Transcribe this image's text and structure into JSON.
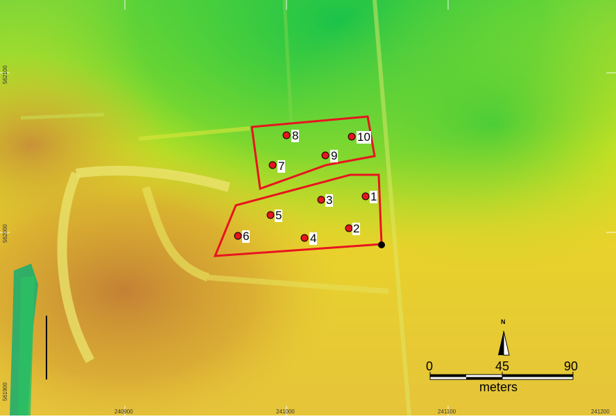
{
  "map": {
    "colors": {
      "terrain_low": "#21c21b",
      "terrain_mid": "#dfe600",
      "terrain_high": "#c98a2e",
      "field_boundary": "#e8141e",
      "sample_point": "#e8141e",
      "reference_point": "#000000"
    },
    "points": [
      {
        "id": "1",
        "label": "1"
      },
      {
        "id": "2",
        "label": "2"
      },
      {
        "id": "3",
        "label": "3"
      },
      {
        "id": "4",
        "label": "4"
      },
      {
        "id": "5",
        "label": "5"
      },
      {
        "id": "6",
        "label": "6"
      },
      {
        "id": "7",
        "label": "7"
      },
      {
        "id": "8",
        "label": "8"
      },
      {
        "id": "9",
        "label": "9"
      },
      {
        "id": "10",
        "label": "10"
      }
    ],
    "x_ticks": [
      "240900",
      "241000",
      "241100",
      "241200"
    ],
    "y_ticks": [
      "562100",
      "562000",
      "561900"
    ]
  },
  "north_arrow": {
    "label": "N",
    "icon": "north-arrow-icon"
  },
  "scale_bar": {
    "labels": [
      "0",
      "45",
      "90"
    ],
    "unit": "meters",
    "max_value": 90
  }
}
